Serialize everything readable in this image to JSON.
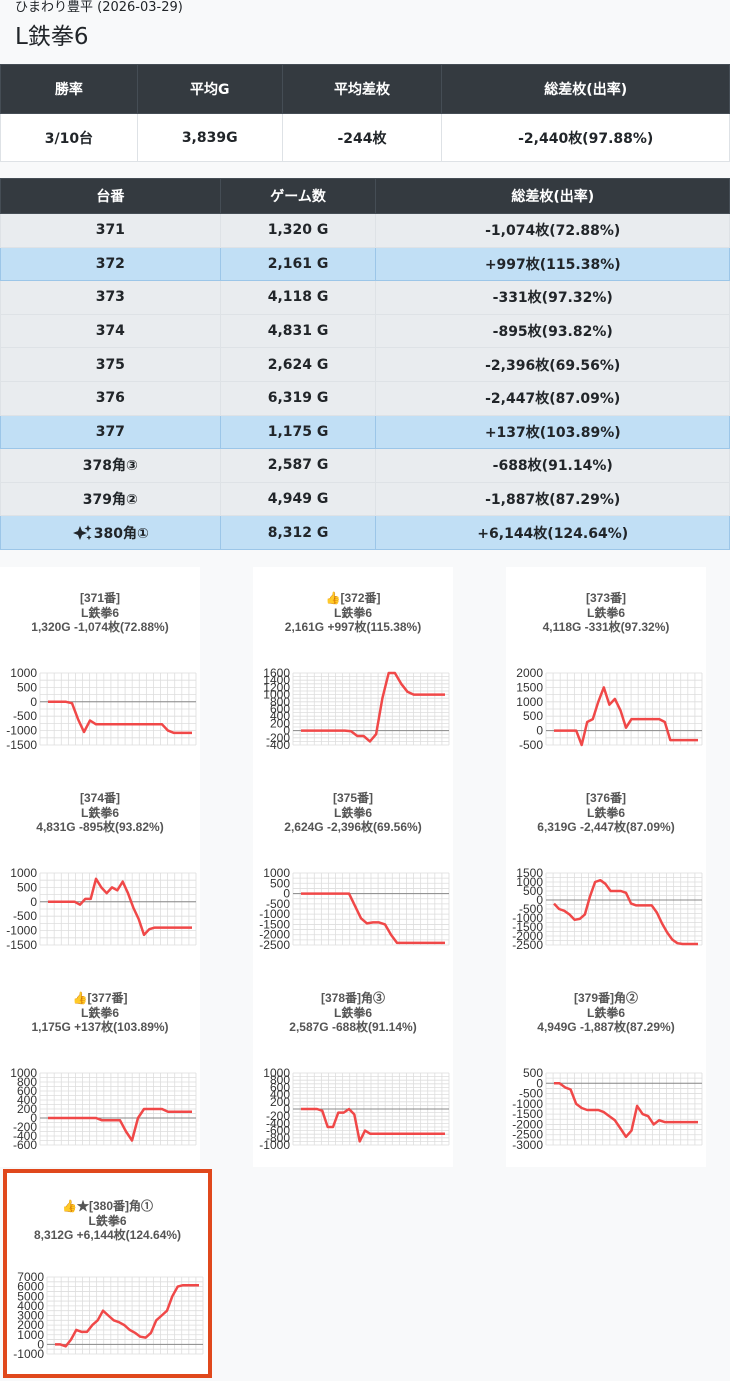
{
  "header": {
    "subtitle": "ひまわり豊平 (2026-03-29)",
    "title": "L鉄拳6"
  },
  "summary": {
    "headers": [
      "勝率",
      "平均G",
      "平均差枚",
      "総差枚(出率)"
    ],
    "values": [
      "3/10台",
      "3,839G",
      "-244枚",
      "-2,440枚(97.88%)"
    ]
  },
  "machines": {
    "headers": [
      "台番",
      "ゲーム数",
      "総差枚(出率)"
    ],
    "rows": [
      {
        "no": "371",
        "games": "1,320 G",
        "diff": "-1,074枚(72.88%)",
        "hl": false
      },
      {
        "no": "372",
        "games": "2,161 G",
        "diff": "+997枚(115.38%)",
        "hl": true
      },
      {
        "no": "373",
        "games": "4,118 G",
        "diff": "-331枚(97.32%)",
        "hl": false
      },
      {
        "no": "374",
        "games": "4,831 G",
        "diff": "-895枚(93.82%)",
        "hl": false
      },
      {
        "no": "375",
        "games": "2,624 G",
        "diff": "-2,396枚(69.56%)",
        "hl": false
      },
      {
        "no": "376",
        "games": "6,319 G",
        "diff": "-2,447枚(87.09%)",
        "hl": false
      },
      {
        "no": "377",
        "games": "1,175 G",
        "diff": "+137枚(103.89%)",
        "hl": true
      },
      {
        "no": "378角③",
        "games": "2,587 G",
        "diff": "-688枚(91.14%)",
        "hl": false
      },
      {
        "no": "379角②",
        "games": "4,949 G",
        "diff": "-1,887枚(87.29%)",
        "hl": false
      },
      {
        "no": "380角①",
        "games": "8,312 G",
        "diff": "+6,144枚(124.64%)",
        "hl": true,
        "sparkle": true
      }
    ]
  },
  "chart_data": [
    {
      "type": "line",
      "title": [
        "[371番]",
        "L鉄拳6",
        "1,320G -1,074枚(72.88%)"
      ],
      "thumb": false,
      "ticks": [
        1000,
        500,
        0,
        -500,
        -1000,
        -1500
      ],
      "ylim": [
        -1500,
        1000
      ],
      "values": [
        0,
        0,
        0,
        0,
        -50,
        -600,
        -1050,
        -650,
        -780,
        -780,
        -780,
        -780,
        -780,
        -780,
        -780,
        -780,
        -780,
        -780,
        -780,
        -780,
        -1000,
        -1080,
        -1080,
        -1080,
        -1080
      ]
    },
    {
      "type": "line",
      "title": [
        "[372番]",
        "L鉄拳6",
        "2,161G +997枚(115.38%)"
      ],
      "thumb": true,
      "ticks": [
        1600,
        1400,
        1200,
        1000,
        800,
        600,
        400,
        200,
        0,
        -200,
        -400
      ],
      "ylim": [
        -400,
        1600
      ],
      "values": [
        0,
        0,
        0,
        0,
        0,
        0,
        0,
        0,
        -20,
        -150,
        -150,
        -300,
        -100,
        900,
        1600,
        1600,
        1300,
        1080,
        1000,
        1000,
        1000,
        1000,
        1000,
        1000
      ]
    },
    {
      "type": "line",
      "title": [
        "[373番]",
        "L鉄拳6",
        "4,118G -331枚(97.32%)"
      ],
      "thumb": false,
      "ticks": [
        2000,
        1500,
        1000,
        500,
        0,
        -500
      ],
      "ylim": [
        -500,
        2000
      ],
      "values": [
        0,
        0,
        0,
        0,
        0,
        -500,
        300,
        400,
        1000,
        1500,
        900,
        1100,
        700,
        100,
        400,
        400,
        400,
        400,
        400,
        400,
        300,
        -331,
        -331,
        -331,
        -331,
        -331,
        -331
      ]
    },
    {
      "type": "line",
      "title": [
        "[374番]",
        "L鉄拳6",
        "4,831G -895枚(93.82%)"
      ],
      "thumb": false,
      "ticks": [
        1000,
        500,
        0,
        -500,
        -1000,
        -1500
      ],
      "ylim": [
        -1500,
        1000
      ],
      "values": [
        0,
        0,
        0,
        0,
        0,
        0,
        -100,
        100,
        100,
        800,
        500,
        300,
        500,
        400,
        700,
        300,
        -200,
        -600,
        -1150,
        -950,
        -895,
        -895,
        -895,
        -895,
        -895,
        -895,
        -895,
        -895
      ]
    },
    {
      "type": "line",
      "title": [
        "[375番]",
        "L鉄拳6",
        "2,624G -2,396枚(69.56%)"
      ],
      "thumb": false,
      "ticks": [
        1000,
        500,
        0,
        -500,
        -1000,
        -1500,
        -2000,
        -2500
      ],
      "ylim": [
        -2500,
        1000
      ],
      "values": [
        0,
        0,
        0,
        0,
        0,
        0,
        0,
        0,
        0,
        -600,
        -1200,
        -1450,
        -1400,
        -1400,
        -1500,
        -2000,
        -2396,
        -2396,
        -2396,
        -2396,
        -2396,
        -2396,
        -2396,
        -2396,
        -2396
      ]
    },
    {
      "type": "line",
      "title": [
        "[376番]",
        "L鉄拳6",
        "6,319G -2,447枚(87.09%)"
      ],
      "thumb": false,
      "ticks": [
        1500,
        1000,
        500,
        0,
        -500,
        -1000,
        -1500,
        -2000,
        -2500
      ],
      "ylim": [
        -2500,
        1500
      ],
      "values": [
        -200,
        -500,
        -600,
        -800,
        -1100,
        -1050,
        -800,
        200,
        1000,
        1100,
        900,
        500,
        500,
        500,
        400,
        -200,
        -300,
        -300,
        -300,
        -300,
        -700,
        -1300,
        -1800,
        -2200,
        -2400,
        -2447,
        -2447,
        -2447,
        -2447
      ]
    },
    {
      "type": "line",
      "title": [
        "[377番]",
        "L鉄拳6",
        "1,175G +137枚(103.89%)"
      ],
      "thumb": true,
      "ticks": [
        1000,
        800,
        600,
        400,
        200,
        0,
        -200,
        -400,
        -600
      ],
      "ylim": [
        -600,
        1000
      ],
      "values": [
        0,
        0,
        0,
        0,
        0,
        0,
        0,
        0,
        0,
        -50,
        -50,
        -50,
        -50,
        -300,
        -500,
        0,
        200,
        200,
        200,
        200,
        137,
        137,
        137,
        137,
        137
      ]
    },
    {
      "type": "line",
      "title": [
        "[378番]角③",
        "L鉄拳6",
        "2,587G -688枚(91.14%)"
      ],
      "thumb": false,
      "ticks": [
        1000,
        800,
        600,
        400,
        200,
        0,
        -200,
        -400,
        -600,
        -800,
        -1000
      ],
      "ylim": [
        -1000,
        1000
      ],
      "values": [
        0,
        0,
        0,
        0,
        -50,
        -500,
        -500,
        -100,
        -100,
        0,
        -150,
        -900,
        -600,
        -688,
        -688,
        -688,
        -688,
        -688,
        -688,
        -688,
        -688,
        -688,
        -688,
        -688,
        -688,
        -688,
        -688,
        -688
      ]
    },
    {
      "type": "line",
      "title": [
        "[379番]角②",
        "L鉄拳6",
        "4,949G -1,887枚(87.29%)"
      ],
      "thumb": false,
      "ticks": [
        500,
        0,
        -500,
        -1000,
        -1500,
        -2000,
        -2500,
        -3000
      ],
      "ylim": [
        -3000,
        500
      ],
      "values": [
        0,
        0,
        -200,
        -300,
        -1000,
        -1200,
        -1300,
        -1300,
        -1300,
        -1400,
        -1600,
        -1800,
        -2200,
        -2600,
        -2300,
        -1100,
        -1500,
        -1600,
        -2000,
        -1800,
        -1887,
        -1887,
        -1887,
        -1887,
        -1887,
        -1887,
        -1887
      ]
    },
    {
      "type": "line",
      "title": [
        "★[380番]角①",
        "L鉄拳6",
        "8,312G +6,144枚(124.64%)"
      ],
      "thumb": true,
      "ticks": [
        7000,
        6000,
        5000,
        4000,
        3000,
        2000,
        1000,
        0,
        -1000
      ],
      "ylim": [
        -1000,
        7000
      ],
      "values": [
        0,
        0,
        -200,
        500,
        1500,
        1300,
        1300,
        2000,
        2500,
        3500,
        3000,
        2500,
        2300,
        2000,
        1500,
        1200,
        800,
        700,
        1200,
        2500,
        3000,
        3500,
        5000,
        6000,
        6144,
        6144,
        6144,
        6144
      ]
    }
  ]
}
